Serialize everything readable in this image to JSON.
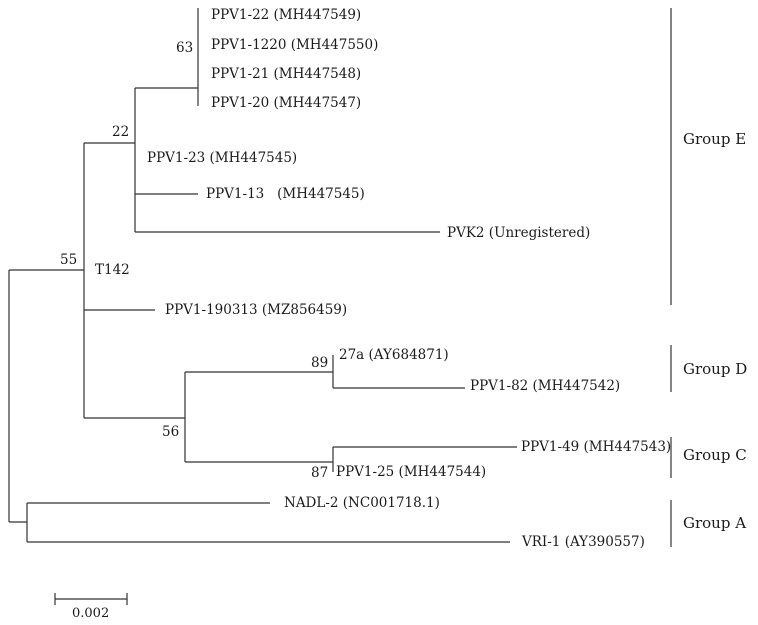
{
  "taxa": {
    "ppv1_22": "PPV1-22 (MH447549)",
    "ppv1_1220": "PPV1-1220 (MH447550)",
    "ppv1_21": "PPV1-21 (MH447548)",
    "ppv1_20": "PPV1-20 (MH447547)",
    "ppv1_23": "PPV1-23 (MH447545)",
    "ppv1_13": "PPV1-13   (MH447545)",
    "pvk2": "PVK2 (Unregistered)",
    "t142": "T142",
    "ppv1_190313": "PPV1-190313 (MZ856459)",
    "a27a": "27a (AY684871)",
    "ppv1_82": "PPV1-82 (MH447542)",
    "ppv1_49": "PPV1-49 (MH447543)",
    "ppv1_25": "PPV1-25 (MH447544)",
    "nadl2": "NADL-2 (NC001718.1)",
    "vri1": "VRI-1 (AY390557)"
  },
  "bootstrap": {
    "n63": "63",
    "n22": "22",
    "n55": "55",
    "n89": "89",
    "n56": "56",
    "n87": "87"
  },
  "groups": {
    "e": "Group E",
    "d": "Group D",
    "c": "Group C",
    "a": "Group A"
  },
  "scale_bar": "0.002",
  "line_color": "#333333"
}
